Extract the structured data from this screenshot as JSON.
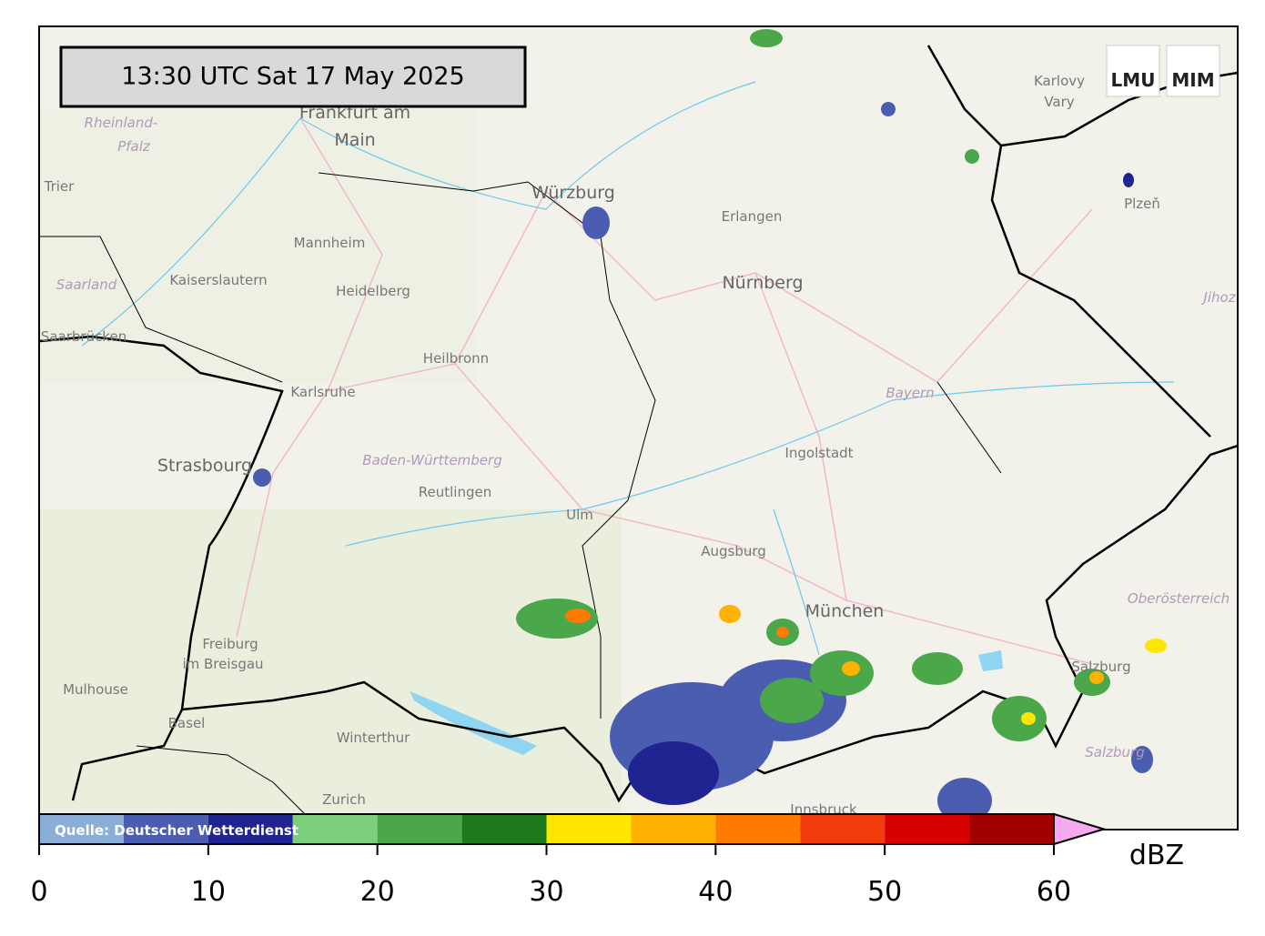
{
  "header": {
    "timestamp": "13:30 UTC  Sat 17 May 2025",
    "logo_left": "LMU",
    "logo_right": "MIM"
  },
  "places": [
    "Frankfurt am",
    "Main",
    "Würzburg",
    "Erlangen",
    "Nürnberg",
    "Mannheim",
    "Heidelberg",
    "Kaiserslautern",
    "Saarbrücken",
    "Trier",
    "Heilbronn",
    "Karlsruhe",
    "Strasbourg",
    "Reutlingen",
    "Ulm",
    "Ingolstadt",
    "Augsburg",
    "München",
    "Freiburg",
    "im Breisgau",
    "Mulhouse",
    "Basel",
    "Winterthur",
    "Zurich",
    "Karlovy",
    "Vary",
    "Plzeň",
    "Salzburg",
    "Innsbruck"
  ],
  "regions": [
    "Rheinland-",
    "Pfalz",
    "Saarland",
    "Baden-Württemberg",
    "Bayern",
    "Oberösterreich",
    "Jihoz",
    "Salzburg"
  ],
  "colorbar": {
    "source": "Quelle: Deutscher Wetterdienst",
    "bins": [
      0,
      5,
      10,
      15,
      20,
      25,
      30,
      35,
      40,
      45,
      50,
      55,
      60
    ],
    "colors": [
      "#8aaed8",
      "#4b5db0",
      "#1f2490",
      "#7ccd7c",
      "#4aa84a",
      "#1c7a1c",
      "#ffe600",
      "#ffb300",
      "#ff7a00",
      "#f03c0a",
      "#d80000",
      "#a00000"
    ],
    "over_color": "#f7aaf0",
    "ticks": [
      0,
      10,
      20,
      30,
      40,
      50,
      60
    ],
    "label": "dBZ"
  }
}
